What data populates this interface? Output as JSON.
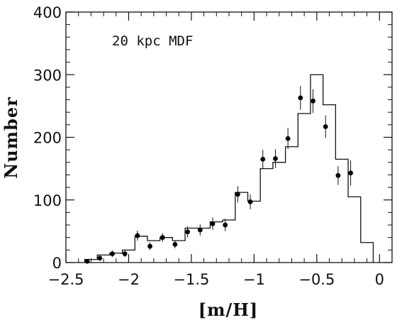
{
  "chart_data": {
    "type": "histogram",
    "annotation": "20 kpc MDF",
    "xlabel": "[m/H]",
    "ylabel": "Number",
    "xlim": [
      -2.5,
      0.1
    ],
    "ylim": [
      0,
      400
    ],
    "x_ticks": [
      "-2.5",
      "-2",
      "-1.5",
      "-1",
      "-0.5",
      "0"
    ],
    "x_tick_values": [
      -2.5,
      -2,
      -1.5,
      -1,
      -0.5,
      0
    ],
    "y_ticks": [
      "0",
      "100",
      "200",
      "300",
      "400"
    ],
    "y_tick_values": [
      0,
      100,
      200,
      300,
      400
    ],
    "zero_line": "dashed",
    "model_histogram": {
      "bin_edges": [
        -2.35,
        -2.25,
        -2.15,
        -2.05,
        -1.95,
        -1.85,
        -1.75,
        -1.65,
        -1.55,
        -1.45,
        -1.35,
        -1.25,
        -1.15,
        -1.05,
        -0.95,
        -0.85,
        -0.75,
        -0.65,
        -0.55,
        -0.45,
        -0.35,
        -0.25,
        -0.15,
        -0.05
      ],
      "values": [
        5,
        12,
        15,
        20,
        42,
        35,
        40,
        35,
        55,
        55,
        65,
        68,
        112,
        98,
        150,
        160,
        185,
        238,
        300,
        252,
        165,
        105,
        32
      ]
    },
    "observed_points": {
      "x": [
        -2.33,
        -2.23,
        -2.13,
        -2.03,
        -1.93,
        -1.83,
        -1.73,
        -1.63,
        -1.53,
        -1.43,
        -1.33,
        -1.23,
        -1.13,
        -1.03,
        -0.93,
        -0.83,
        -0.73,
        -0.63,
        -0.53,
        -0.43,
        -0.33,
        -0.23
      ],
      "y": [
        2,
        7,
        14,
        14,
        43,
        26,
        40,
        29,
        49,
        52,
        62,
        60,
        109,
        97,
        165,
        166,
        198,
        263,
        258,
        217,
        139,
        143
      ],
      "err": [
        3,
        4,
        5,
        5,
        8,
        6,
        7,
        6,
        9,
        9,
        10,
        10,
        13,
        12,
        15,
        15,
        17,
        19,
        19,
        18,
        15,
        20
      ]
    }
  }
}
